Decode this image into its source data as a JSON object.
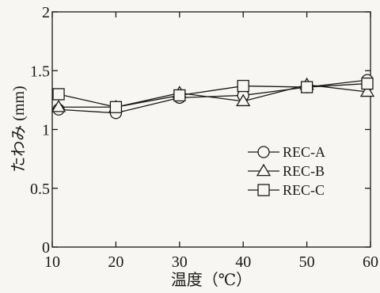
{
  "chart_data": {
    "type": "line",
    "xlabel": "温度（℃）",
    "ylabel": "たわみ (mm)",
    "xlim": [
      10,
      60
    ],
    "ylim": [
      0,
      2
    ],
    "xticks": [
      "10",
      "20",
      "30",
      "40",
      "50",
      "60"
    ],
    "yticks": [
      "0",
      "0.5",
      "1",
      "1.5",
      "2"
    ],
    "grid": false,
    "legend_position": "right",
    "series": [
      {
        "name": "REC-A",
        "marker": "circle",
        "x": [
          11,
          20,
          30,
          40,
          50,
          59.5
        ],
        "y": [
          1.17,
          1.14,
          1.27,
          1.29,
          1.36,
          1.42
        ]
      },
      {
        "name": "REC-B",
        "marker": "triangle",
        "x": [
          11,
          20,
          30,
          40,
          50,
          59.5
        ],
        "y": [
          1.19,
          1.19,
          1.31,
          1.24,
          1.38,
          1.32
        ]
      },
      {
        "name": "REC-C",
        "marker": "square",
        "x": [
          11,
          20,
          30,
          40,
          50,
          59.5
        ],
        "y": [
          1.3,
          1.19,
          1.29,
          1.37,
          1.36,
          1.39
        ]
      }
    ]
  }
}
